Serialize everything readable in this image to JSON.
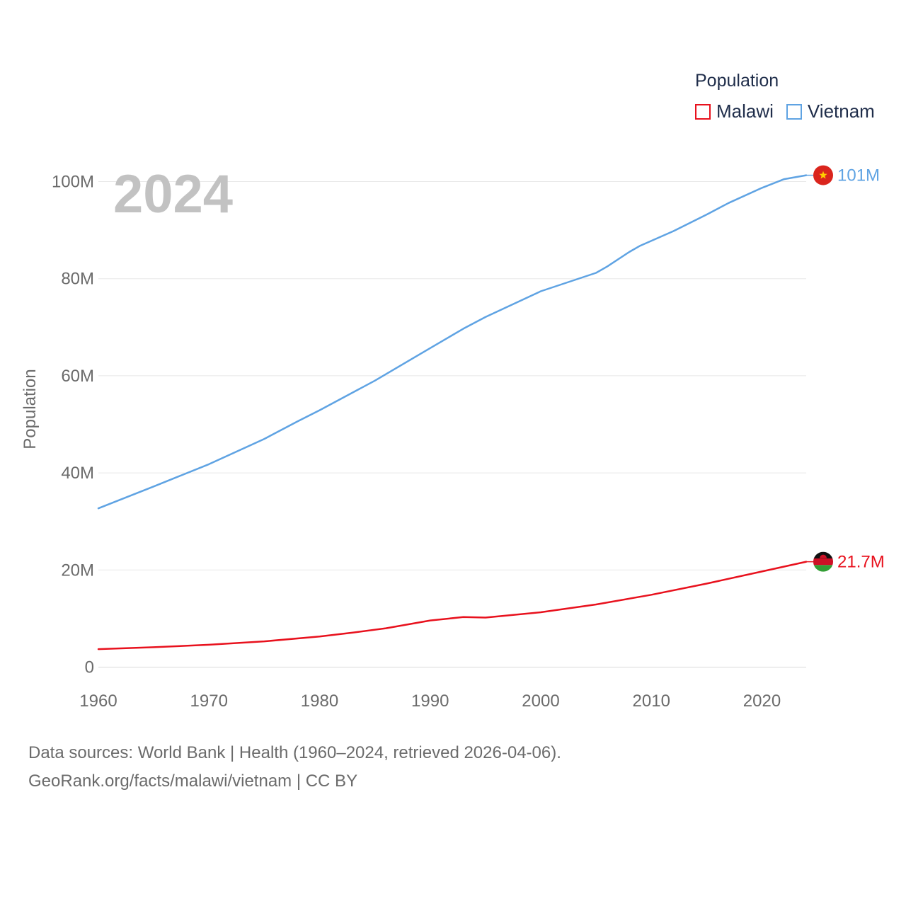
{
  "chart_data": {
    "type": "line",
    "title": "Population",
    "year_label": "2024",
    "xlabel": "",
    "ylabel": "Population",
    "xlim": [
      1960,
      2024
    ],
    "ylim": [
      0,
      100000000
    ],
    "x_ticks": [
      1960,
      1970,
      1980,
      1990,
      2000,
      2010,
      2020
    ],
    "x_tick_labels": [
      "1960",
      "1970",
      "1980",
      "1990",
      "2000",
      "2010",
      "2020"
    ],
    "y_ticks": [
      0,
      20000000,
      40000000,
      60000000,
      80000000,
      100000000
    ],
    "y_tick_labels": [
      "0",
      "20M",
      "40M",
      "60M",
      "80M",
      "100M"
    ],
    "grid": true,
    "legend_title": "Population",
    "legend_position": "top-right",
    "series": [
      {
        "name": "Malawi",
        "color": "#e8111d",
        "end_label": "21.7M",
        "flag": "malawi-flag",
        "points": [
          [
            1960,
            3700000
          ],
          [
            1965,
            4100000
          ],
          [
            1970,
            4600000
          ],
          [
            1975,
            5300000
          ],
          [
            1980,
            6300000
          ],
          [
            1983,
            7100000
          ],
          [
            1986,
            8000000
          ],
          [
            1990,
            9600000
          ],
          [
            1993,
            10300000
          ],
          [
            1995,
            10200000
          ],
          [
            2000,
            11300000
          ],
          [
            2005,
            12900000
          ],
          [
            2010,
            14900000
          ],
          [
            2015,
            17200000
          ],
          [
            2020,
            19700000
          ],
          [
            2024,
            21700000
          ]
        ]
      },
      {
        "name": "Vietnam",
        "color": "#5fa3e3",
        "end_label": "101M",
        "flag": "vietnam-flag",
        "points": [
          [
            1960,
            32700000
          ],
          [
            1962,
            34500000
          ],
          [
            1965,
            37200000
          ],
          [
            1970,
            41800000
          ],
          [
            1975,
            47000000
          ],
          [
            1978,
            50600000
          ],
          [
            1980,
            52900000
          ],
          [
            1985,
            59000000
          ],
          [
            1990,
            65700000
          ],
          [
            1993,
            69700000
          ],
          [
            1995,
            72100000
          ],
          [
            2000,
            77400000
          ],
          [
            2005,
            81200000
          ],
          [
            2006,
            82500000
          ],
          [
            2008,
            85500000
          ],
          [
            2009,
            86800000
          ],
          [
            2012,
            89800000
          ],
          [
            2015,
            93200000
          ],
          [
            2017,
            95600000
          ],
          [
            2020,
            98700000
          ],
          [
            2022,
            100500000
          ],
          [
            2024,
            101300000
          ]
        ]
      }
    ]
  },
  "footer": {
    "line1": "Data sources: World Bank | Health (1960–2024, retrieved 2026-04-06).",
    "line2": "GeoRank.org/facts/malawi/vietnam | CC BY"
  }
}
